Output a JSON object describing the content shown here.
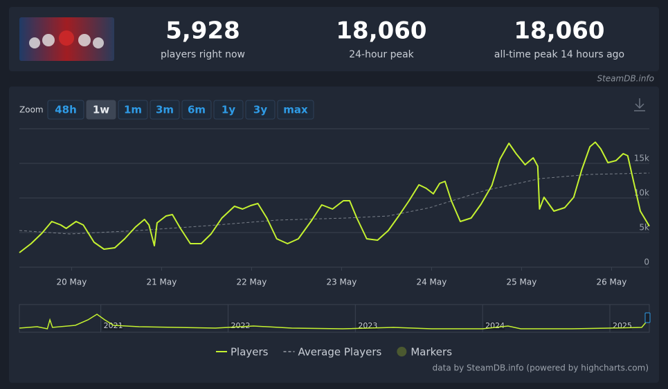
{
  "header": {
    "stats": [
      {
        "value": "5,928",
        "label": "players right now"
      },
      {
        "value": "18,060",
        "label": "24-hour peak"
      },
      {
        "value": "18,060",
        "label": "all-time peak 14 hours ago"
      }
    ],
    "source": "SteamDB.info"
  },
  "zoom": {
    "label": "Zoom",
    "buttons": [
      "48h",
      "1w",
      "1m",
      "3m",
      "6m",
      "1y",
      "3y",
      "max"
    ],
    "active": "1w"
  },
  "chart_data": {
    "type": "line",
    "xlim": [
      19.42,
      26.42
    ],
    "xticks": [
      {
        "value": 20,
        "label": "20 May"
      },
      {
        "value": 21,
        "label": "21 May"
      },
      {
        "value": 22,
        "label": "22 May"
      },
      {
        "value": 23,
        "label": "23 May"
      },
      {
        "value": 24,
        "label": "24 May"
      },
      {
        "value": 25,
        "label": "25 May"
      },
      {
        "value": 26,
        "label": "26 May"
      }
    ],
    "ylim": [
      0,
      20000
    ],
    "yticks": [
      0,
      {
        "value": 5000,
        "label": "5k"
      },
      {
        "value": 10000,
        "label": "10k"
      },
      {
        "value": 15000,
        "label": "15k"
      }
    ],
    "grid": true,
    "series": [
      {
        "name": "Players",
        "color": "#c5f230",
        "x": [
          19.42,
          19.55,
          19.67,
          19.78,
          19.88,
          19.94,
          20.05,
          20.13,
          20.25,
          20.36,
          20.48,
          20.59,
          20.71,
          20.81,
          20.86,
          20.92,
          20.95,
          21.05,
          21.12,
          21.21,
          21.32,
          21.44,
          21.55,
          21.67,
          21.81,
          21.9,
          21.99,
          22.07,
          22.17,
          22.28,
          22.4,
          22.52,
          22.67,
          22.78,
          22.9,
          23.02,
          23.09,
          23.17,
          23.28,
          23.4,
          23.52,
          23.63,
          23.75,
          23.86,
          23.94,
          24.02,
          24.09,
          24.15,
          24.22,
          24.32,
          24.44,
          24.55,
          24.67,
          24.76,
          24.86,
          24.94,
          25.04,
          25.13,
          25.18,
          25.2,
          25.25,
          25.36,
          25.48,
          25.58,
          25.67,
          25.76,
          25.82,
          25.88,
          25.96,
          26.05,
          26.13,
          26.18,
          26.25,
          26.32,
          26.42
        ],
        "values": [
          2100,
          3400,
          4900,
          6600,
          6100,
          5600,
          6600,
          6100,
          3600,
          2600,
          2800,
          4100,
          5800,
          6900,
          6100,
          3100,
          6400,
          7400,
          7600,
          5600,
          3400,
          3400,
          4800,
          7100,
          8800,
          8400,
          8900,
          9200,
          7100,
          4100,
          3400,
          4100,
          6800,
          9000,
          8400,
          9600,
          9600,
          7100,
          4100,
          3900,
          5300,
          7300,
          9600,
          11900,
          11400,
          10600,
          12100,
          12400,
          9600,
          6600,
          7100,
          9100,
          11800,
          15600,
          17900,
          16400,
          14800,
          15800,
          14600,
          8400,
          10100,
          8100,
          8600,
          10100,
          14100,
          17400,
          18060,
          17100,
          15100,
          15400,
          16400,
          16100,
          12100,
          8100,
          5928
        ]
      },
      {
        "name": "Average Players",
        "color": "#7a808a",
        "x": [
          19.42,
          19.98,
          20.75,
          21.52,
          22.28,
          23.05,
          23.52,
          23.98,
          24.6,
          25.21,
          25.75,
          26.42
        ],
        "values": [
          5300,
          4800,
          5300,
          6000,
          6800,
          7100,
          7400,
          8600,
          11100,
          12800,
          13400,
          13600
        ]
      }
    ],
    "markers": {
      "name": "Markers",
      "color": "#4b5930"
    },
    "navigator": {
      "xlim": [
        2020.36,
        2025.31
      ],
      "xticks": [
        {
          "value": 2021,
          "label": "2021"
        },
        {
          "value": 2022,
          "label": "2022"
        },
        {
          "value": 2023,
          "label": "2023"
        },
        {
          "value": 2024,
          "label": "2024"
        },
        {
          "value": 2025,
          "label": "2025"
        }
      ],
      "ylim": [
        0,
        20000
      ],
      "x": [
        2020.36,
        2020.5,
        2020.58,
        2020.6,
        2020.62,
        2020.8,
        2020.9,
        2020.97,
        2021.03,
        2021.1,
        2021.3,
        2021.6,
        2021.9,
        2022.2,
        2022.5,
        2022.9,
        2023.3,
        2023.6,
        2024.0,
        2024.2,
        2024.3,
        2024.7,
        2025.0,
        2025.25,
        2025.3,
        2025.31
      ],
      "values": [
        3000,
        4000,
        2500,
        9000,
        3500,
        5000,
        9000,
        13000,
        9000,
        5000,
        4000,
        3500,
        3000,
        4500,
        3000,
        2500,
        3500,
        2500,
        2500,
        4500,
        2500,
        2500,
        3000,
        3500,
        9000,
        13000
      ]
    },
    "credits": "data by SteamDB.info (powered by highcharts.com)"
  }
}
